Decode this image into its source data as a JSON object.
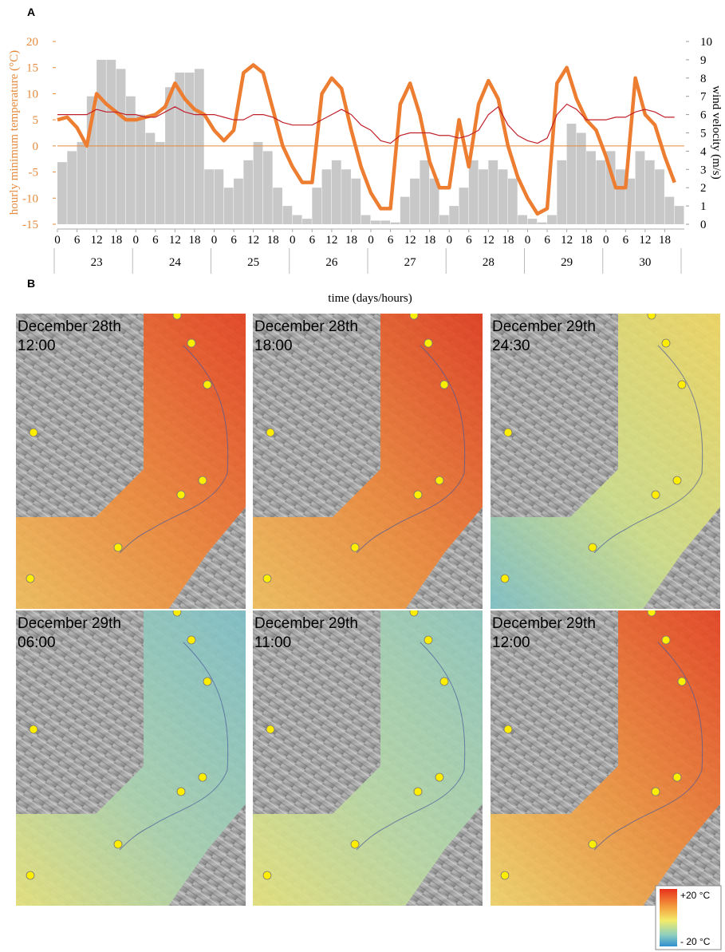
{
  "chart_data": {
    "type": "bar",
    "panel_label": "A",
    "ylabel": "hourly minimum temperature (°C)",
    "y2label": "wind velocity (m/s)",
    "xlabel": "time (days/hours)",
    "xlim": [
      0,
      192
    ],
    "ylim": [
      -15,
      20
    ],
    "yticks": [
      -15,
      -10,
      -5,
      0,
      5,
      10,
      15,
      20
    ],
    "y2lim": [
      0,
      10
    ],
    "y2ticks": [
      0,
      1,
      2,
      3,
      4,
      5,
      6,
      7,
      8,
      9,
      10
    ],
    "xticks": [
      {
        "value": 0,
        "label": "0"
      },
      {
        "value": 6,
        "label": "6"
      },
      {
        "value": 12,
        "label": "12"
      },
      {
        "value": 18,
        "label": "18"
      },
      {
        "value": 24,
        "label": "0"
      },
      {
        "value": 30,
        "label": "6"
      },
      {
        "value": 36,
        "label": "12"
      },
      {
        "value": 42,
        "label": "18"
      },
      {
        "value": 48,
        "label": "0"
      },
      {
        "value": 54,
        "label": "6"
      },
      {
        "value": 60,
        "label": "12"
      },
      {
        "value": 66,
        "label": "18"
      },
      {
        "value": 72,
        "label": "0"
      },
      {
        "value": 78,
        "label": "6"
      },
      {
        "value": 84,
        "label": "12"
      },
      {
        "value": 90,
        "label": "18"
      },
      {
        "value": 96,
        "label": "0"
      },
      {
        "value": 102,
        "label": "6"
      },
      {
        "value": 108,
        "label": "12"
      },
      {
        "value": 114,
        "label": "18"
      },
      {
        "value": 120,
        "label": "0"
      },
      {
        "value": 126,
        "label": "6"
      },
      {
        "value": 132,
        "label": "12"
      },
      {
        "value": 138,
        "label": "18"
      },
      {
        "value": 144,
        "label": "0"
      },
      {
        "value": 150,
        "label": "6"
      },
      {
        "value": 156,
        "label": "12"
      },
      {
        "value": 162,
        "label": "18"
      },
      {
        "value": 168,
        "label": "0"
      },
      {
        "value": 174,
        "label": "6"
      },
      {
        "value": 180,
        "label": "12"
      },
      {
        "value": 186,
        "label": "18"
      }
    ],
    "days": [
      "23",
      "24",
      "25",
      "26",
      "27",
      "28",
      "29",
      "30"
    ],
    "x": [
      0,
      3,
      6,
      9,
      12,
      15,
      18,
      21,
      24,
      27,
      30,
      33,
      36,
      39,
      42,
      45,
      48,
      51,
      54,
      57,
      60,
      63,
      66,
      69,
      72,
      75,
      78,
      81,
      84,
      87,
      90,
      93,
      96,
      99,
      102,
      105,
      108,
      111,
      114,
      117,
      120,
      123,
      126,
      129,
      132,
      135,
      138,
      141,
      144,
      147,
      150,
      153,
      156,
      159,
      162,
      165,
      168,
      171,
      174,
      177,
      180,
      183,
      186,
      189
    ],
    "series": [
      {
        "type": "bar",
        "axis": "y2",
        "color": "#c8c8c8",
        "values": [
          3.4,
          4,
          4.5,
          7,
          9,
          9,
          8.5,
          7,
          6,
          5,
          4.5,
          7.5,
          8.3,
          8.3,
          8.5,
          3,
          3,
          2,
          2.5,
          3.5,
          4.5,
          4,
          2,
          1,
          0.5,
          0.3,
          2,
          3,
          3.5,
          3,
          2.5,
          0.5,
          0.2,
          0.2,
          0.1,
          1.5,
          2.5,
          3.5,
          2.5,
          0.5,
          1,
          2,
          3.5,
          3,
          3.5,
          3,
          2.5,
          0.5,
          0.3,
          0.1,
          0.5,
          3.5,
          5.5,
          5,
          4,
          3.5,
          4,
          3,
          2.5,
          4,
          3.5,
          3,
          1.5,
          1
        ]
      },
      {
        "type": "line",
        "color": "#ed7d31",
        "values": [
          5,
          5.5,
          3.5,
          0,
          10,
          8,
          6.5,
          5,
          5,
          5.5,
          6,
          7.5,
          12,
          9,
          7,
          6,
          3,
          1,
          3,
          14,
          15.5,
          14,
          7,
          0,
          -4,
          -7,
          -7,
          10,
          13,
          11,
          3,
          -4,
          -9,
          -12,
          -12,
          8,
          12,
          6,
          -3,
          -8,
          -8,
          5,
          -4,
          8,
          12.5,
          9,
          0,
          -6,
          -10,
          -13,
          -12,
          12,
          15,
          9,
          5,
          3,
          -2,
          -8,
          -8,
          13,
          6,
          4,
          -2,
          -7
        ]
      },
      {
        "type": "line",
        "color": "#c0202a",
        "values": [
          6,
          6,
          6,
          6,
          7,
          6.5,
          6.5,
          6,
          6,
          5.5,
          5.5,
          6.5,
          7.5,
          6.5,
          6,
          6,
          6,
          5.5,
          5,
          5,
          6,
          6,
          5.5,
          4.5,
          4,
          4,
          4,
          5,
          6,
          7,
          6,
          4,
          3,
          1,
          0.5,
          2,
          2.5,
          2.5,
          2.5,
          2,
          2,
          1.5,
          2,
          3,
          6,
          7.5,
          4,
          2,
          1,
          0.5,
          1.5,
          6,
          8,
          7,
          5,
          5,
          5,
          5.5,
          5.5,
          6.5,
          7,
          6.5,
          5.5,
          5.5
        ]
      }
    ]
  },
  "maps": {
    "panel_label": "B",
    "panels": [
      {
        "date": "December 28th",
        "time": "12:00"
      },
      {
        "date": "December 28th",
        "time": "18:00"
      },
      {
        "date": "December 29th",
        "time": "24:30"
      },
      {
        "date": "December 29th",
        "time": "06:00"
      },
      {
        "date": "December 29th",
        "time": "11:00"
      },
      {
        "date": "December 29th",
        "time": "12:00"
      }
    ],
    "legend_max": "+20 °C",
    "legend_min": "- 20 °C"
  }
}
